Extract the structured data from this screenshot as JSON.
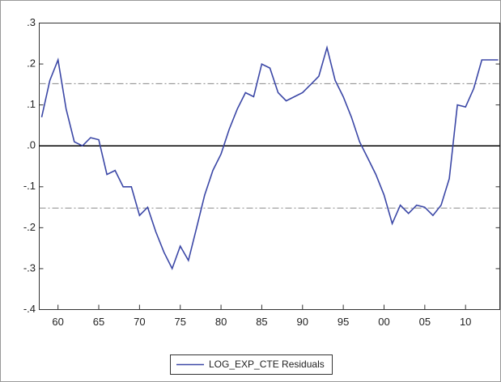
{
  "chart_data": {
    "type": "line",
    "x": [
      1958,
      1959,
      1960,
      1961,
      1962,
      1963,
      1964,
      1965,
      1966,
      1967,
      1968,
      1969,
      1970,
      1971,
      1972,
      1973,
      1974,
      1975,
      1976,
      1977,
      1978,
      1979,
      1980,
      1981,
      1982,
      1983,
      1984,
      1985,
      1986,
      1987,
      1988,
      1989,
      1990,
      1991,
      1992,
      1993,
      1994,
      1995,
      1996,
      1997,
      1998,
      1999,
      2000,
      2001,
      2002,
      2003,
      2004,
      2005,
      2006,
      2007,
      2008,
      2009,
      2010,
      2011,
      2012,
      2013,
      2014
    ],
    "series": [
      {
        "name": "LOG_EXP_CTE Residuals",
        "color": "#3b47a6",
        "values": [
          0.07,
          0.16,
          0.21,
          0.09,
          0.01,
          0.0,
          0.02,
          0.015,
          -0.07,
          -0.06,
          -0.1,
          -0.1,
          -0.17,
          -0.15,
          -0.21,
          -0.26,
          -0.3,
          -0.245,
          -0.28,
          -0.2,
          -0.12,
          -0.06,
          -0.02,
          0.04,
          0.09,
          0.13,
          0.12,
          0.2,
          0.19,
          0.13,
          0.11,
          0.12,
          0.13,
          0.15,
          0.17,
          0.24,
          0.16,
          0.12,
          0.07,
          0.01,
          -0.03,
          -0.07,
          -0.12,
          -0.19,
          -0.145,
          -0.165,
          -0.145,
          -0.15,
          -0.17,
          -0.145,
          -0.08,
          0.1,
          0.095,
          0.14,
          0.21,
          0.21,
          0.21
        ]
      }
    ],
    "xlim": [
      1957.7,
      2014.2
    ],
    "xticks": [
      {
        "value": 1960,
        "label": "60"
      },
      {
        "value": 1965,
        "label": "65"
      },
      {
        "value": 1970,
        "label": "70"
      },
      {
        "value": 1975,
        "label": "75"
      },
      {
        "value": 1980,
        "label": "80"
      },
      {
        "value": 1985,
        "label": "85"
      },
      {
        "value": 1990,
        "label": "90"
      },
      {
        "value": 1995,
        "label": "95"
      },
      {
        "value": 2000,
        "label": "00"
      },
      {
        "value": 2005,
        "label": "05"
      },
      {
        "value": 2010,
        "label": "10"
      }
    ],
    "ylim": [
      -0.4,
      0.3
    ],
    "yticks": [
      {
        "value": -0.4,
        "label": "-.4"
      },
      {
        "value": -0.3,
        "label": "-.3"
      },
      {
        "value": -0.2,
        "label": "-.2"
      },
      {
        "value": -0.1,
        "label": "-.1"
      },
      {
        "value": 0,
        "label": ".0"
      },
      {
        "value": 0.1,
        "label": ".1"
      },
      {
        "value": 0.2,
        "label": ".2"
      },
      {
        "value": 0.3,
        "label": ".3"
      }
    ],
    "zero_line": 0,
    "bands": [
      0.152,
      -0.152
    ],
    "legend": "bottom"
  }
}
